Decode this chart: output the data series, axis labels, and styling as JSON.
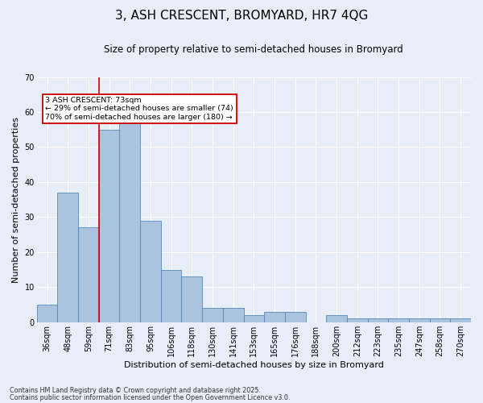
{
  "title": "3, ASH CRESCENT, BROMYARD, HR7 4QG",
  "subtitle": "Size of property relative to semi-detached houses in Bromyard",
  "xlabel": "Distribution of semi-detached houses by size in Bromyard",
  "ylabel": "Number of semi-detached properties",
  "categories": [
    "36sqm",
    "48sqm",
    "59sqm",
    "71sqm",
    "83sqm",
    "95sqm",
    "106sqm",
    "118sqm",
    "130sqm",
    "141sqm",
    "153sqm",
    "165sqm",
    "176sqm",
    "188sqm",
    "200sqm",
    "212sqm",
    "223sqm",
    "235sqm",
    "247sqm",
    "258sqm",
    "270sqm"
  ],
  "values": [
    5,
    37,
    27,
    55,
    57,
    29,
    15,
    13,
    4,
    4,
    2,
    3,
    3,
    0,
    2,
    1,
    1,
    1,
    1,
    1,
    1
  ],
  "bar_color": "#aac4e0",
  "bar_edge_color": "#5588bb",
  "background_color": "#e8eef8",
  "grid_color": "#ffffff",
  "red_line_index": 3,
  "red_line_label": "3 ASH CRESCENT: 73sqm",
  "smaller_pct": "29%",
  "smaller_n": 74,
  "larger_pct": "70%",
  "larger_n": 180,
  "annotation_box_color": "#ffffff",
  "annotation_border_color": "#cc0000",
  "ylim": [
    0,
    70
  ],
  "yticks": [
    0,
    10,
    20,
    30,
    40,
    50,
    60,
    70
  ],
  "footnote1": "Contains HM Land Registry data © Crown copyright and database right 2025.",
  "footnote2": "Contains public sector information licensed under the Open Government Licence v3.0.",
  "title_fontsize": 11,
  "subtitle_fontsize": 8.5,
  "tick_fontsize": 7,
  "label_fontsize": 8,
  "ylabel_full": "Number of semi-detached properties"
}
